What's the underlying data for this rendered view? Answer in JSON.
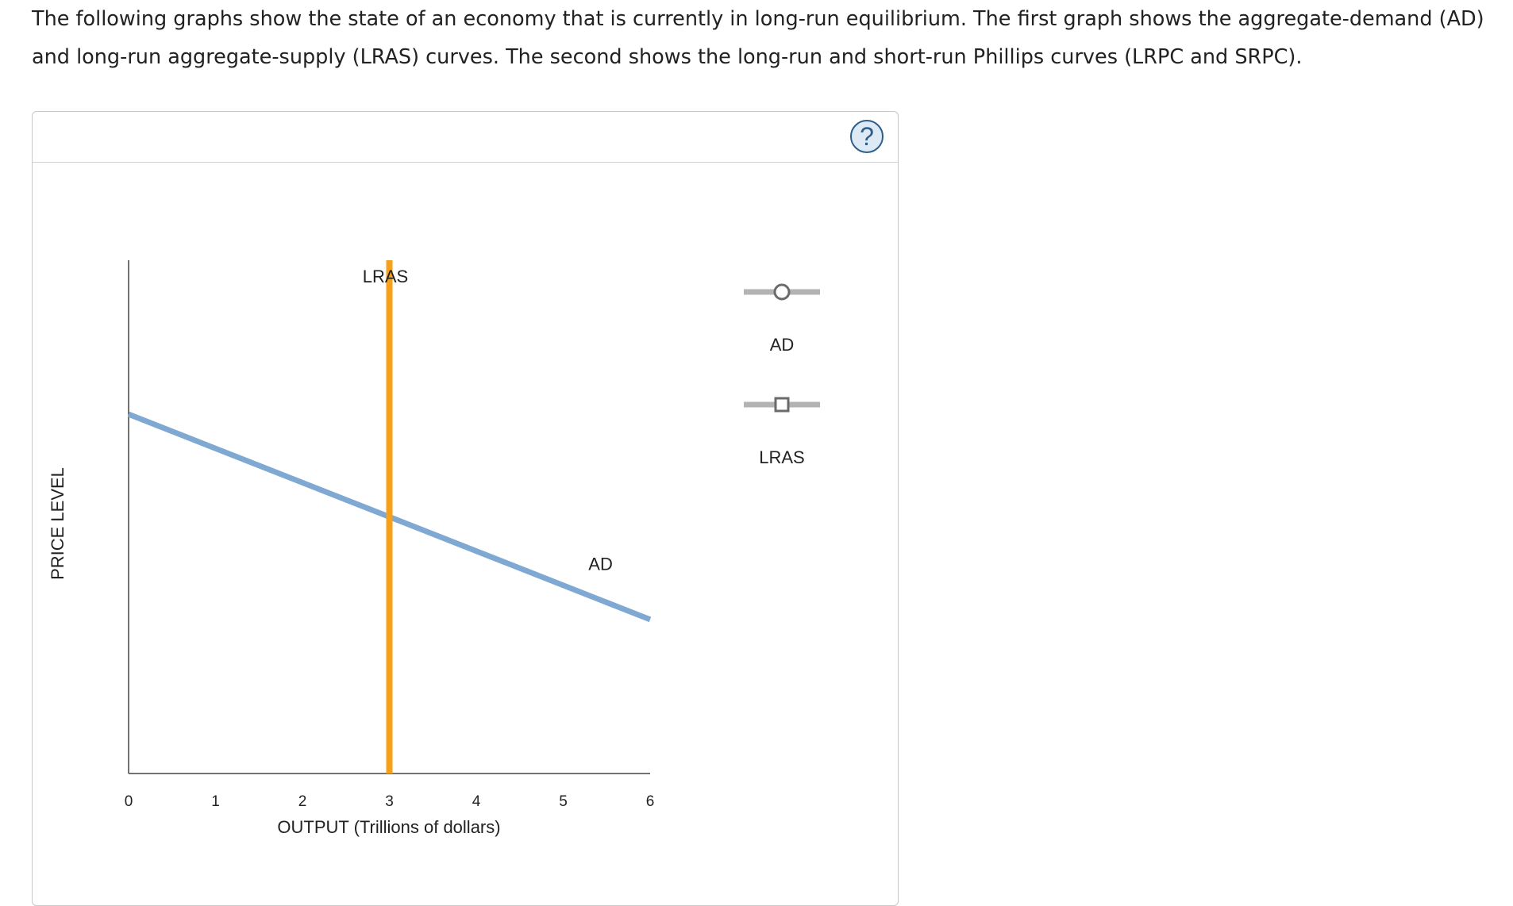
{
  "instructions": "The following graphs show the state of an economy that is currently in long-run equilibrium. The first graph shows the aggregate-demand (AD) and long-run aggregate-supply (LRAS) curves. The second shows the long-run and short-run Phillips curves (LRPC and SRPC).",
  "help": {
    "label": "?"
  },
  "chart_data": {
    "type": "line",
    "title": "",
    "xlabel": "OUTPUT (Trillions of dollars)",
    "ylabel": "PRICE LEVEL",
    "xlim": [
      0,
      6
    ],
    "xticks": [
      "0",
      "1",
      "2",
      "3",
      "4",
      "5",
      "6"
    ],
    "y_tick_labels": false,
    "grid": false,
    "series": [
      {
        "name": "AD",
        "color": "#7fa8d2",
        "x": [
          0,
          6
        ],
        "y_fraction_of_axis": [
          0.7,
          0.3
        ]
      },
      {
        "name": "LRAS",
        "color": "#f7a01a",
        "x": [
          3,
          3
        ],
        "y_fraction_of_axis": [
          0,
          1
        ]
      }
    ],
    "legend": {
      "placement": "right",
      "items": [
        {
          "label": "AD",
          "marker": "circle"
        },
        {
          "label": "LRAS",
          "marker": "square"
        }
      ]
    }
  }
}
